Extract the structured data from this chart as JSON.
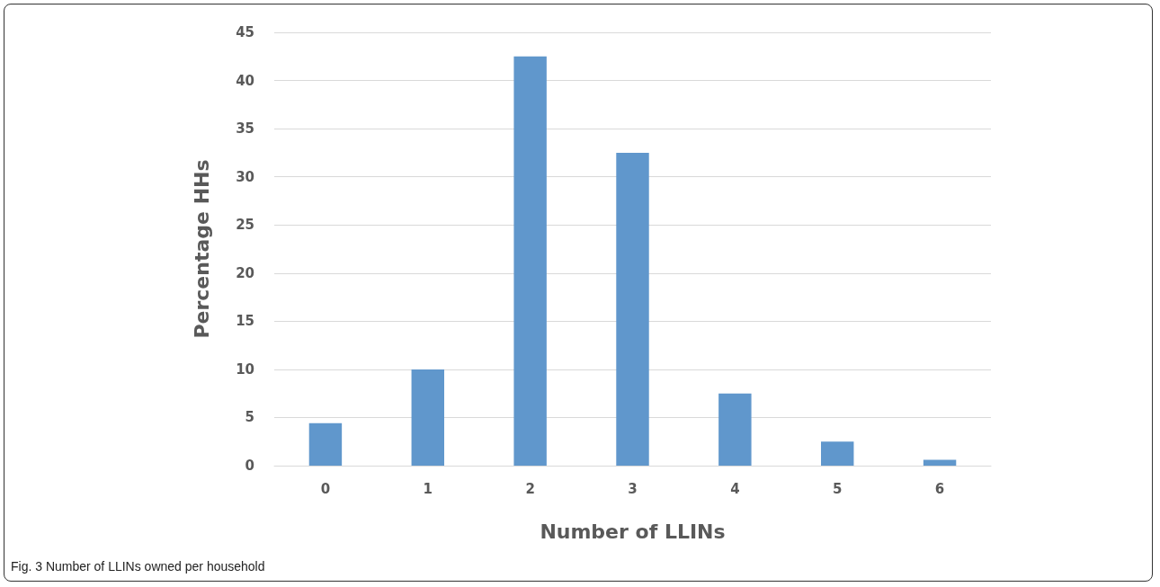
{
  "chart_data": {
    "type": "bar",
    "xlabel": "Number of LLINs",
    "ylabel": "Percentage HHs",
    "categories": [
      "0",
      "1",
      "2",
      "3",
      "4",
      "5",
      "6"
    ],
    "values": [
      4.4,
      10,
      42.5,
      32.5,
      7.5,
      2.5,
      0.6
    ],
    "color": "#6097cc",
    "ylim": [
      0,
      45
    ],
    "yticks": [
      0,
      5,
      10,
      15,
      20,
      25,
      30,
      35,
      40,
      45
    ],
    "grid": "y",
    "annotations": [
      "Fig. 3 Number of LLINs owned per household"
    ]
  }
}
